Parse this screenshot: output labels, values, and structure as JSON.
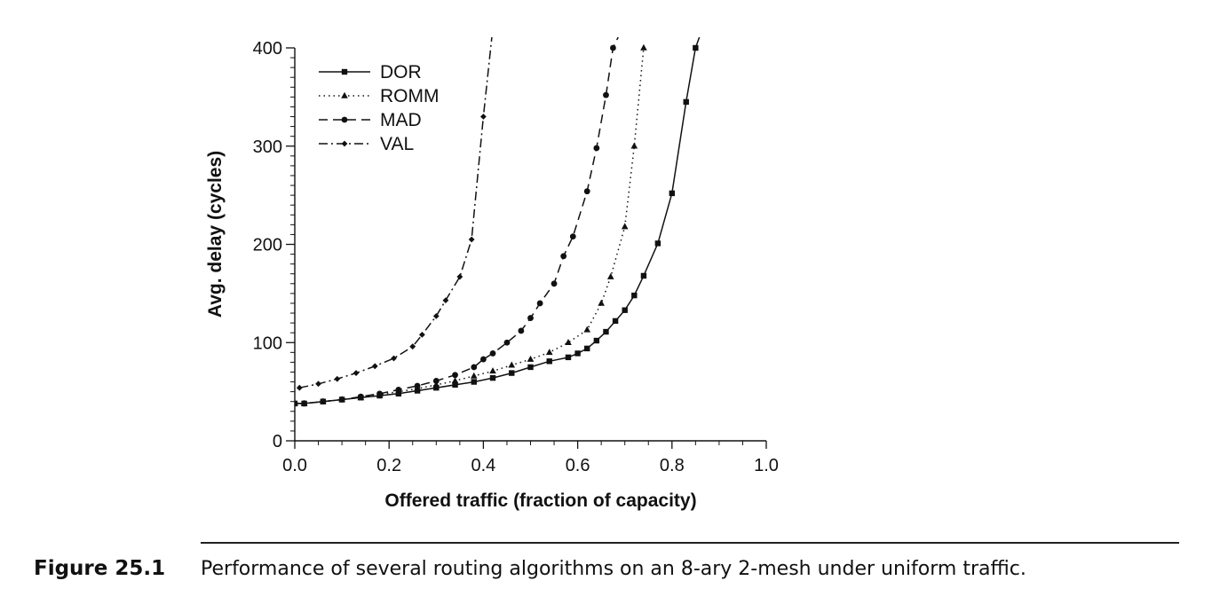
{
  "chart_data": {
    "type": "line",
    "xlabel": "Offered traffic (fraction of capacity)",
    "ylabel": "Avg. delay (cycles)",
    "xlim": [
      0,
      1
    ],
    "ylim": [
      0,
      400
    ],
    "x_ticks": [
      "0.0",
      "0.2",
      "0.4",
      "0.6",
      "0.8",
      "1.0"
    ],
    "y_ticks": [
      "0",
      "100",
      "200",
      "300",
      "400"
    ],
    "grid": false,
    "legend_position": "top-left",
    "series": [
      {
        "name": "DOR",
        "line_style": "solid",
        "marker": "square",
        "x": [
          0.0,
          0.02,
          0.06,
          0.1,
          0.14,
          0.18,
          0.22,
          0.26,
          0.3,
          0.34,
          0.38,
          0.42,
          0.46,
          0.5,
          0.54,
          0.58,
          0.6,
          0.62,
          0.64,
          0.66,
          0.68,
          0.7,
          0.72,
          0.74,
          0.77,
          0.8,
          0.83,
          0.85,
          0.865
        ],
        "y": [
          38,
          38,
          40,
          42,
          44,
          46,
          48,
          51,
          54,
          57,
          60,
          64,
          69,
          75,
          81,
          85,
          89,
          94,
          102,
          111,
          122,
          133,
          148,
          168,
          201,
          252,
          345,
          400,
          420
        ]
      },
      {
        "name": "ROMM",
        "line_style": "dotted",
        "marker": "triangle",
        "x": [
          0.0,
          0.02,
          0.06,
          0.1,
          0.14,
          0.18,
          0.22,
          0.26,
          0.3,
          0.34,
          0.38,
          0.42,
          0.46,
          0.5,
          0.54,
          0.58,
          0.62,
          0.65,
          0.67,
          0.7,
          0.72,
          0.74
        ],
        "y": [
          38,
          38,
          40,
          42,
          44,
          47,
          50,
          53,
          57,
          61,
          66,
          71,
          77,
          83,
          90,
          100,
          113,
          140,
          167,
          218,
          300,
          400
        ]
      },
      {
        "name": "MAD",
        "line_style": "dashed",
        "marker": "circle",
        "x": [
          0.0,
          0.02,
          0.06,
          0.1,
          0.14,
          0.18,
          0.22,
          0.26,
          0.3,
          0.34,
          0.38,
          0.4,
          0.42,
          0.45,
          0.48,
          0.5,
          0.52,
          0.55,
          0.57,
          0.59,
          0.62,
          0.64,
          0.66,
          0.675,
          0.695
        ],
        "y": [
          38,
          38,
          40,
          42,
          45,
          48,
          52,
          56,
          61,
          67,
          75,
          83,
          89,
          100,
          112,
          125,
          140,
          160,
          188,
          208,
          254,
          298,
          352,
          400,
          420
        ]
      },
      {
        "name": "VAL",
        "line_style": "dash-dot",
        "marker": "diamond",
        "x": [
          0.01,
          0.05,
          0.09,
          0.13,
          0.17,
          0.21,
          0.25,
          0.27,
          0.3,
          0.32,
          0.35,
          0.375,
          0.4,
          0.42
        ],
        "y": [
          54,
          58,
          63,
          69,
          76,
          84,
          96,
          108,
          127,
          143,
          167,
          205,
          330,
          420
        ]
      }
    ]
  },
  "caption": {
    "label": "Figure 25.1",
    "text": "Performance of several routing algorithms on an 8-ary 2-mesh under uniform traffic."
  }
}
